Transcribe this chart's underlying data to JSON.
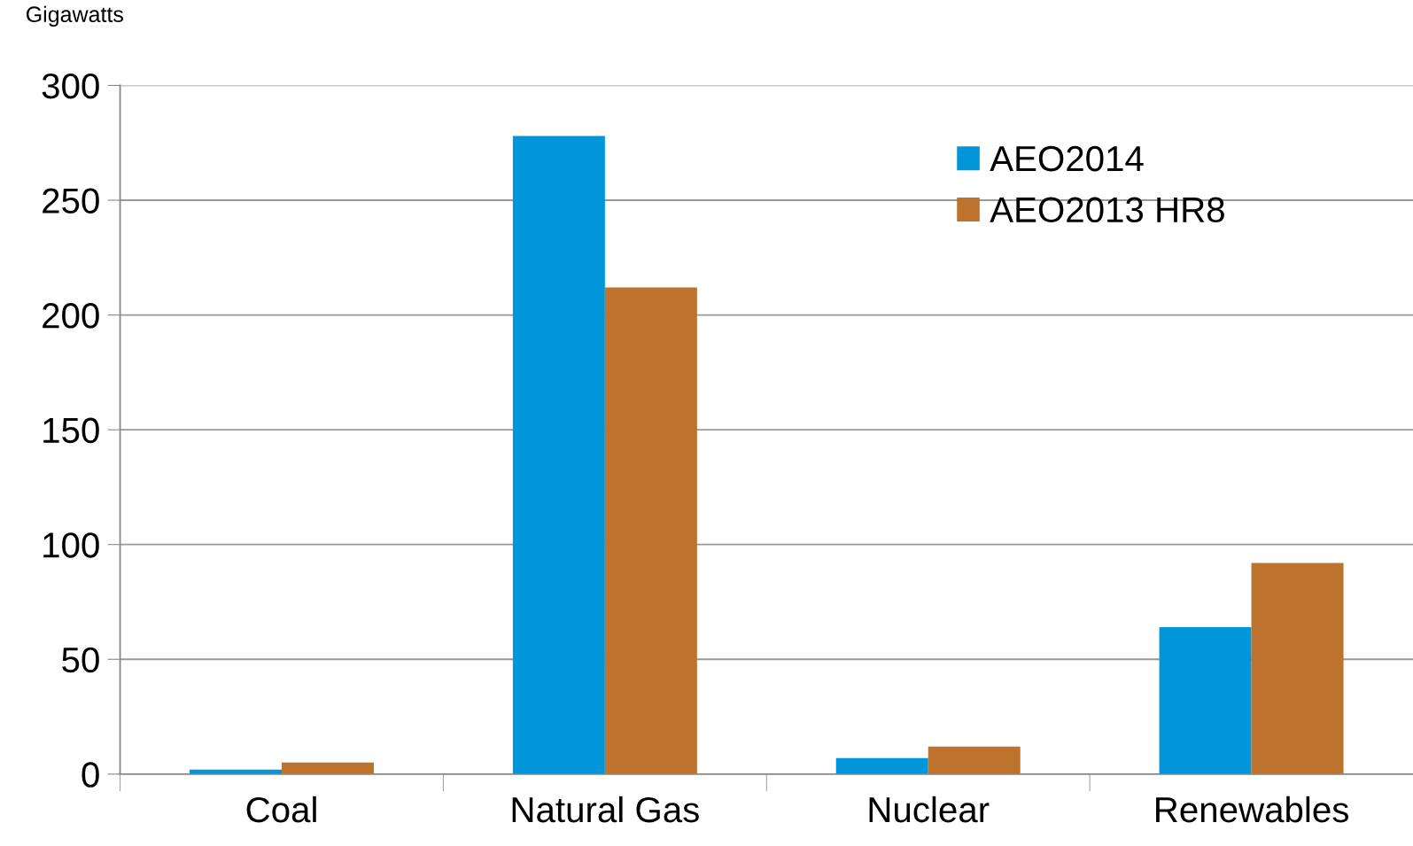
{
  "chart_data": {
    "type": "bar",
    "ylabel": "Gigawatts",
    "categories": [
      "Coal",
      "Natural Gas",
      "Nuclear",
      "Renewables"
    ],
    "series": [
      {
        "name": "AEO2014",
        "color": "#0096d9",
        "values": [
          2,
          278,
          7,
          64
        ]
      },
      {
        "name": "AEO2013 HR8",
        "color": "#bd732c",
        "values": [
          5,
          212,
          12,
          92
        ]
      }
    ],
    "ylim": [
      0,
      300
    ],
    "yticks": [
      0,
      50,
      100,
      150,
      200,
      250,
      300
    ],
    "grid": "y",
    "legend": "top right"
  }
}
